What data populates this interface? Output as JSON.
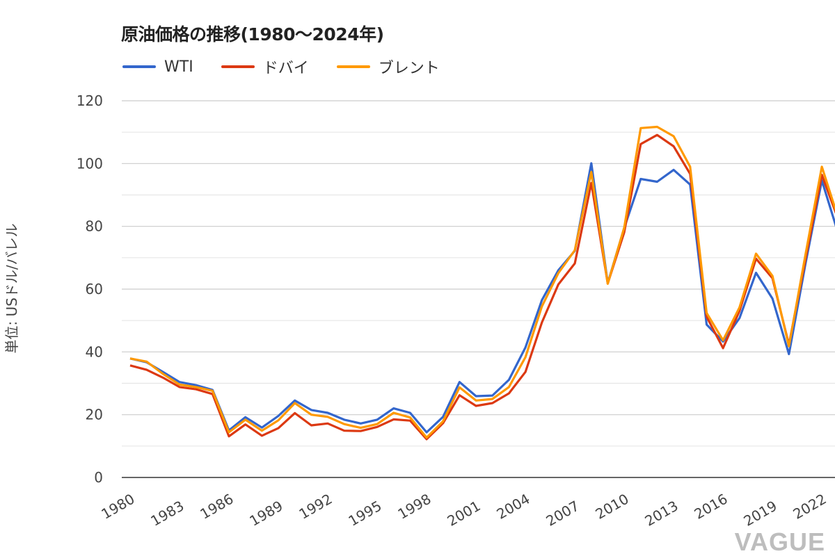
{
  "chart_data": {
    "type": "line",
    "title": "原油価格の推移(1980〜2024年)",
    "ylabel": "単位: USドル/バレル",
    "xlabel": "",
    "ylim": [
      0,
      120
    ],
    "yticks": [
      0,
      20,
      40,
      60,
      80,
      100,
      120
    ],
    "grid": true,
    "legend_position": "top-left",
    "xtick_labels": [
      "1980",
      "1983",
      "1986",
      "1989",
      "1992",
      "1995",
      "1998",
      "2001",
      "2004",
      "2007",
      "2010",
      "2013",
      "2016",
      "2019",
      "2022"
    ],
    "x": [
      1980,
      1981,
      1982,
      1983,
      1984,
      1985,
      1986,
      1987,
      1988,
      1989,
      1990,
      1991,
      1992,
      1993,
      1994,
      1995,
      1996,
      1997,
      1998,
      1999,
      2000,
      2001,
      2002,
      2003,
      2004,
      2005,
      2006,
      2007,
      2008,
      2009,
      2010,
      2011,
      2012,
      2013,
      2014,
      2015,
      2016,
      2017,
      2018,
      2019,
      2020,
      2021,
      2022,
      2023
    ],
    "series": [
      {
        "name": "WTI",
        "color": "#3366cc",
        "values": [
          37.9,
          36.7,
          33.6,
          30.4,
          29.4,
          27.9,
          15.0,
          19.2,
          15.9,
          19.6,
          24.5,
          21.5,
          20.6,
          18.4,
          17.2,
          18.4,
          22.0,
          20.6,
          14.4,
          19.3,
          30.4,
          25.9,
          26.1,
          31.1,
          41.4,
          56.5,
          66.0,
          72.2,
          100.1,
          61.9,
          79.5,
          95.1,
          94.2,
          98.0,
          93.3,
          48.7,
          43.3,
          50.8,
          65.2,
          57.0,
          39.3,
          68.0,
          94.6,
          77.6
        ]
      },
      {
        "name": "ドバイ",
        "color": "#dc3912",
        "values": [
          35.7,
          34.3,
          31.8,
          28.8,
          28.1,
          26.6,
          13.1,
          16.9,
          13.3,
          15.7,
          20.5,
          16.6,
          17.2,
          14.9,
          14.8,
          16.1,
          18.5,
          18.1,
          12.2,
          17.3,
          26.2,
          22.8,
          23.7,
          26.8,
          33.6,
          49.4,
          61.5,
          68.2,
          93.8,
          61.8,
          78.1,
          106.2,
          109.1,
          105.5,
          96.7,
          51.2,
          41.2,
          53.1,
          69.7,
          63.5,
          42.3,
          69.4,
          96.4,
          82.1
        ]
      },
      {
        "name": "ブレント",
        "color": "#ff9900",
        "values": [
          37.9,
          36.9,
          33.0,
          29.6,
          28.8,
          27.6,
          14.4,
          18.4,
          14.9,
          18.2,
          23.7,
          20.0,
          19.3,
          17.0,
          15.8,
          17.0,
          20.6,
          19.1,
          12.7,
          17.9,
          28.7,
          24.5,
          25.0,
          28.8,
          38.3,
          54.5,
          65.1,
          72.4,
          97.3,
          61.7,
          79.6,
          111.3,
          111.7,
          108.7,
          99.0,
          52.4,
          43.7,
          54.2,
          71.3,
          64.2,
          41.8,
          70.9,
          99.0,
          82.5
        ]
      }
    ]
  },
  "watermark": "VAGUE"
}
